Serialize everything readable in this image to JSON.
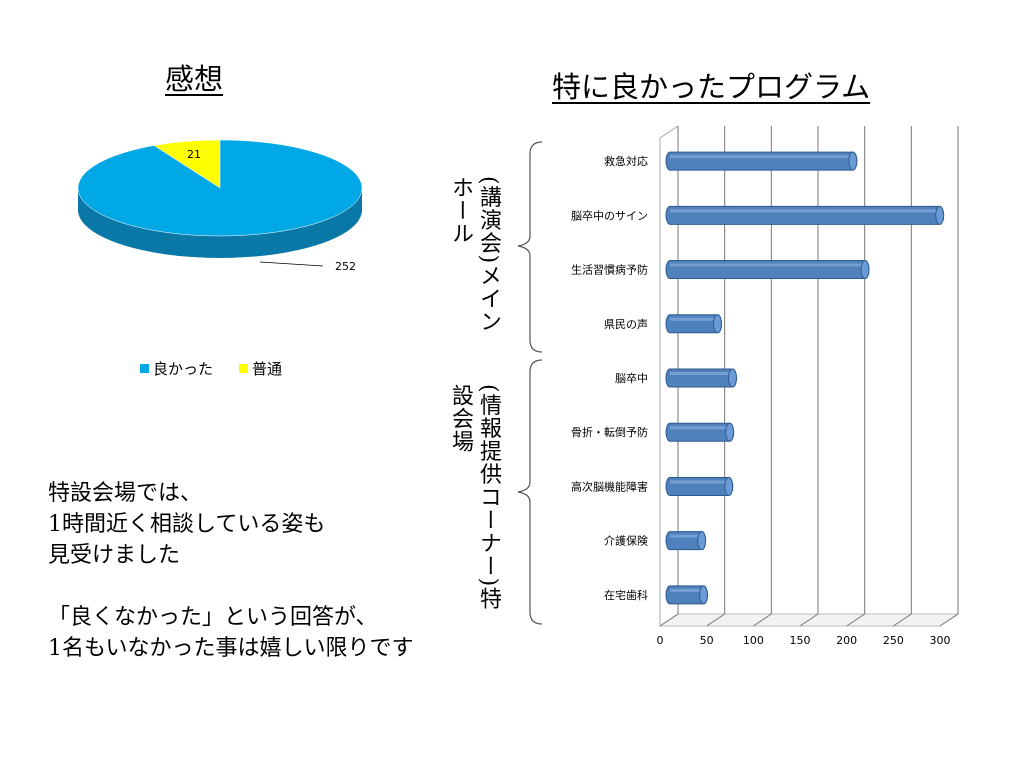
{
  "left_title": "感想",
  "right_title": "特に良かったプログラム",
  "chart_data": [
    {
      "type": "pie",
      "categories": [
        "良かった",
        "普通"
      ],
      "values": [
        252,
        21
      ],
      "colors": [
        "#00a8e6",
        "#ffff00"
      ],
      "data_labels": [
        "252",
        "21"
      ],
      "legend": "bottom"
    },
    {
      "type": "bar",
      "orientation": "horizontal",
      "categories": [
        "救急対応",
        "脳卒中のサイン",
        "生活習慣病予防",
        "県民の声",
        "脳卒中",
        "骨折・転倒予防",
        "高次脳機能障害",
        "介護保険",
        "在宅歯科"
      ],
      "values": [
        197,
        290,
        210,
        52,
        68,
        65,
        64,
        35,
        37
      ],
      "xlim": [
        0,
        300
      ],
      "x_ticks": [
        "0",
        "50",
        "100",
        "150",
        "200",
        "250",
        "300"
      ],
      "grid": "vertical",
      "bar_color": "#4f81bd"
    }
  ],
  "group_labels": {
    "main_hall": "(講演会)メインホール",
    "special_venue": "(情報提供コーナー)特設会場"
  },
  "notes": {
    "line1": "特設会場では、",
    "line2": "1時間近く相談している姿も",
    "line3": "見受けました",
    "line4": "「良くなかった」という回答が、",
    "line5": "1名もいなかった事は嬉しい限りです"
  }
}
